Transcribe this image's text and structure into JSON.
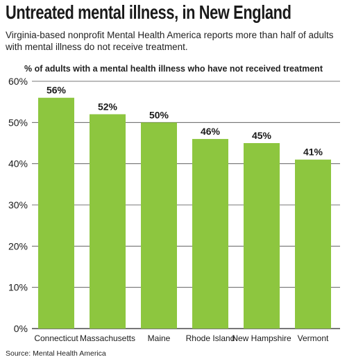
{
  "header": {
    "title": "Untreated mental illness, in New England",
    "subtitle": "Virginia-based nonprofit Mental Health America reports more than half of adults with mental illness do not receive treatment."
  },
  "footer": {
    "source": "Source: Mental Health America"
  },
  "colors": {
    "bar": "#8dc63f",
    "grid": "#4a4a4a",
    "text": "#1a1a1a"
  },
  "chart_data": {
    "type": "bar",
    "title": "% of adults with a mental health illness who have not received treatment",
    "xlabel": "",
    "ylabel": "",
    "categories": [
      "Connecticut",
      "Massachusetts",
      "Maine",
      "Rhode Island",
      "New Hampshire",
      "Vermont"
    ],
    "values": [
      56,
      52,
      50,
      46,
      45,
      41
    ],
    "value_labels": [
      "56%",
      "52%",
      "50%",
      "46%",
      "45%",
      "41%"
    ],
    "ylim": [
      0,
      60
    ],
    "yticks": [
      0,
      10,
      20,
      30,
      40,
      50,
      60
    ],
    "ytick_labels": [
      "0%",
      "10%",
      "20%",
      "30%",
      "40%",
      "50%",
      "60%"
    ],
    "grid": true,
    "legend": "none"
  }
}
